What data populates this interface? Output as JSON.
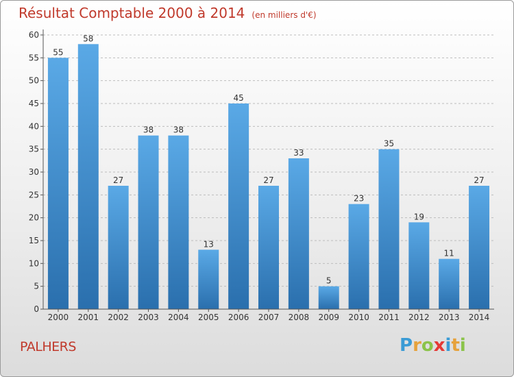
{
  "header": {
    "title": "Résultat Comptable 2000 à 2014",
    "unit": "(en milliers d'€)"
  },
  "footer": {
    "commune": "PALHERS"
  },
  "logo": {
    "letters": [
      "P",
      "r",
      "o",
      "x",
      "i",
      "t",
      "i"
    ],
    "colors": [
      "#3a9bd5",
      "#e6a23c",
      "#8bc34a",
      "#e53935",
      "#3a9bd5",
      "#e6a23c",
      "#8bc34a"
    ]
  },
  "colors": {
    "bar_top": "#5aa9e6",
    "bar_bottom": "#2a6fad",
    "title": "#c0392b",
    "grid": "#bcbcbc"
  },
  "chart_data": {
    "type": "bar",
    "title": "Résultat Comptable 2000 à 2014",
    "ylabel": "",
    "xlabel": "",
    "ylim": [
      0,
      60
    ],
    "yticks": [
      0,
      5,
      10,
      15,
      20,
      25,
      30,
      35,
      40,
      45,
      50,
      55,
      60
    ],
    "grid": true,
    "categories": [
      "2000",
      "2001",
      "2002",
      "2003",
      "2004",
      "2005",
      "2006",
      "2007",
      "2008",
      "2009",
      "2010",
      "2011",
      "2012",
      "2013",
      "2014"
    ],
    "values": [
      55,
      58,
      27,
      38,
      38,
      13,
      45,
      27,
      33,
      5,
      23,
      35,
      19,
      11,
      27
    ]
  }
}
